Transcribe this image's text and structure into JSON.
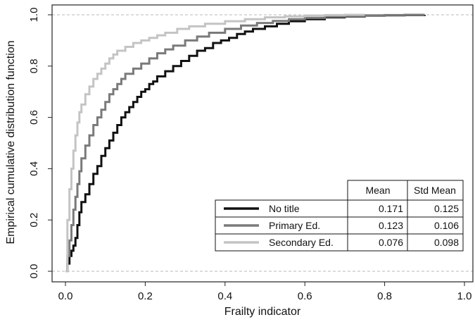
{
  "chart_data": {
    "type": "line",
    "step": true,
    "title": "",
    "xlabel": "Frailty indicator",
    "ylabel": "Empirical cumulative distribution function",
    "xlim": [
      -0.04,
      1.03
    ],
    "ylim": [
      0.0,
      1.0
    ],
    "xticks": [
      "0.0",
      "0.2",
      "0.4",
      "0.6",
      "0.8",
      "1.0"
    ],
    "yticks": [
      "0.0",
      "0.2",
      "0.4",
      "0.6",
      "0.8",
      "1.0"
    ],
    "reference_lines": [
      0.0,
      1.0
    ],
    "grid": false,
    "legend_position": "bottom-right",
    "series": [
      {
        "name": "No title",
        "color": "#111111",
        "x": [
          0.0,
          0.005,
          0.01,
          0.015,
          0.02,
          0.025,
          0.03,
          0.035,
          0.04,
          0.05,
          0.06,
          0.07,
          0.08,
          0.09,
          0.1,
          0.11,
          0.12,
          0.13,
          0.14,
          0.15,
          0.16,
          0.17,
          0.18,
          0.19,
          0.2,
          0.21,
          0.22,
          0.23,
          0.25,
          0.27,
          0.29,
          0.31,
          0.33,
          0.35,
          0.37,
          0.39,
          0.41,
          0.43,
          0.45,
          0.47,
          0.5,
          0.53,
          0.56,
          0.6,
          0.65,
          0.7,
          0.75,
          0.8,
          0.85,
          0.9
        ],
        "y": [
          0.0,
          0.03,
          0.06,
          0.08,
          0.1,
          0.13,
          0.18,
          0.23,
          0.27,
          0.3,
          0.34,
          0.38,
          0.41,
          0.45,
          0.48,
          0.51,
          0.54,
          0.57,
          0.6,
          0.62,
          0.64,
          0.66,
          0.68,
          0.7,
          0.71,
          0.73,
          0.74,
          0.76,
          0.78,
          0.8,
          0.82,
          0.84,
          0.86,
          0.87,
          0.89,
          0.9,
          0.91,
          0.925,
          0.935,
          0.945,
          0.955,
          0.965,
          0.975,
          0.983,
          0.99,
          0.994,
          0.997,
          0.998,
          0.999,
          1.0
        ]
      },
      {
        "name": "Primary Ed.",
        "color": "#7a7a7a",
        "x": [
          0.0,
          0.005,
          0.01,
          0.015,
          0.02,
          0.025,
          0.03,
          0.035,
          0.04,
          0.05,
          0.06,
          0.07,
          0.08,
          0.09,
          0.1,
          0.11,
          0.12,
          0.13,
          0.14,
          0.15,
          0.17,
          0.19,
          0.21,
          0.23,
          0.25,
          0.27,
          0.3,
          0.33,
          0.36,
          0.4,
          0.44,
          0.48,
          0.52,
          0.56,
          0.6,
          0.65,
          0.7,
          0.75,
          0.8,
          0.85,
          0.9
        ],
        "y": [
          0.0,
          0.06,
          0.12,
          0.18,
          0.24,
          0.29,
          0.34,
          0.39,
          0.44,
          0.49,
          0.53,
          0.57,
          0.6,
          0.63,
          0.66,
          0.69,
          0.71,
          0.73,
          0.75,
          0.77,
          0.79,
          0.81,
          0.83,
          0.85,
          0.865,
          0.88,
          0.9,
          0.915,
          0.93,
          0.945,
          0.958,
          0.968,
          0.976,
          0.983,
          0.988,
          0.993,
          0.996,
          0.998,
          0.999,
          1.0,
          1.0
        ]
      },
      {
        "name": "Secondary Ed.",
        "color": "#c4c4c4",
        "x": [
          0.0,
          0.005,
          0.01,
          0.015,
          0.02,
          0.025,
          0.03,
          0.035,
          0.04,
          0.05,
          0.06,
          0.07,
          0.08,
          0.09,
          0.1,
          0.11,
          0.12,
          0.13,
          0.15,
          0.17,
          0.19,
          0.21,
          0.23,
          0.25,
          0.28,
          0.31,
          0.35,
          0.4,
          0.45,
          0.5,
          0.55,
          0.6,
          0.65,
          0.7,
          0.75
        ],
        "y": [
          0.0,
          0.2,
          0.32,
          0.4,
          0.47,
          0.53,
          0.58,
          0.62,
          0.65,
          0.69,
          0.72,
          0.75,
          0.77,
          0.79,
          0.81,
          0.83,
          0.845,
          0.86,
          0.875,
          0.89,
          0.9,
          0.91,
          0.92,
          0.93,
          0.945,
          0.955,
          0.965,
          0.975,
          0.983,
          0.99,
          0.994,
          0.997,
          0.999,
          1.0,
          1.0
        ]
      }
    ],
    "table": {
      "headers": [
        "",
        "Mean",
        "Std Mean"
      ],
      "rows": [
        {
          "label": "No title",
          "mean": "0.171",
          "std_mean": "0.125"
        },
        {
          "label": "Primary Ed.",
          "mean": "0.123",
          "std_mean": "0.106"
        },
        {
          "label": "Secondary Ed.",
          "mean": "0.076",
          "std_mean": "0.098"
        }
      ]
    }
  }
}
